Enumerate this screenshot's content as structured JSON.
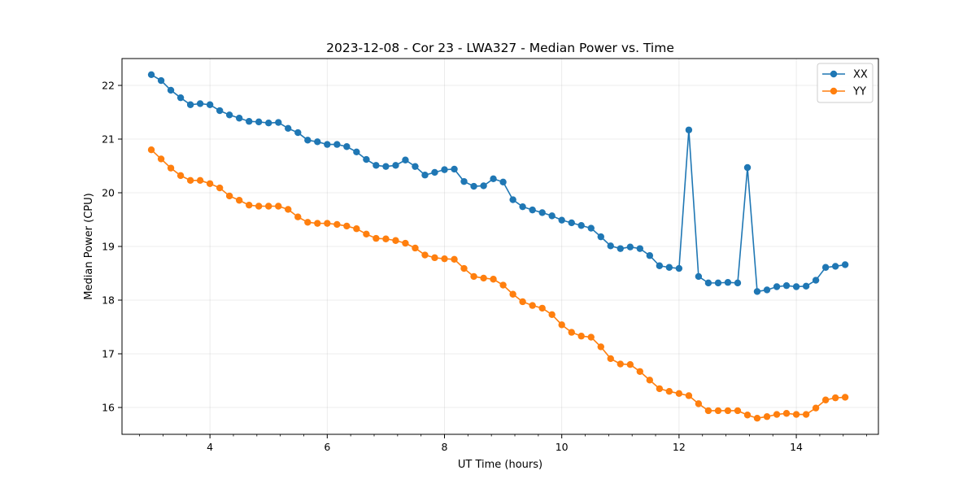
{
  "chart_data": {
    "type": "line",
    "title": "2023-12-08 - Cor 23 - LWA327 - Median Power vs. Time",
    "xlabel": "UT Time (hours)",
    "ylabel": "Median Power (CPU)",
    "xlim": [
      2.5,
      15.4
    ],
    "ylim": [
      15.5,
      22.5
    ],
    "xticks": [
      4,
      6,
      8,
      10,
      12,
      14
    ],
    "xtick_labels": [
      "4",
      "6",
      "8",
      "10",
      "12",
      "14"
    ],
    "yticks": [
      16,
      17,
      18,
      19,
      20,
      21,
      22
    ],
    "ytick_labels": [
      "16",
      "17",
      "18",
      "19",
      "20",
      "21",
      "22"
    ],
    "grid": true,
    "legend_position": "top-right",
    "x": [
      3.0,
      3.167,
      3.333,
      3.5,
      3.667,
      3.833,
      4.0,
      4.167,
      4.333,
      4.5,
      4.667,
      4.833,
      5.0,
      5.167,
      5.333,
      5.5,
      5.667,
      5.833,
      6.0,
      6.167,
      6.333,
      6.5,
      6.667,
      6.833,
      7.0,
      7.167,
      7.333,
      7.5,
      7.667,
      7.833,
      8.0,
      8.167,
      8.333,
      8.5,
      8.667,
      8.833,
      9.0,
      9.167,
      9.333,
      9.5,
      9.667,
      9.833,
      10.0,
      10.167,
      10.333,
      10.5,
      10.667,
      10.833,
      11.0,
      11.167,
      11.333,
      11.5,
      11.667,
      11.833,
      12.0,
      12.167,
      12.333,
      12.5,
      12.667,
      12.833,
      13.0,
      13.167,
      13.333,
      13.5,
      13.667,
      13.833,
      14.0,
      14.167,
      14.333,
      14.5,
      14.667,
      14.833
    ],
    "series": [
      {
        "name": "XX",
        "color": "#1f77b4",
        "values": [
          22.2,
          22.09,
          21.91,
          21.77,
          21.64,
          21.66,
          21.64,
          21.53,
          21.45,
          21.39,
          21.33,
          21.32,
          21.3,
          21.31,
          21.2,
          21.12,
          20.98,
          20.95,
          20.9,
          20.9,
          20.86,
          20.76,
          20.62,
          20.51,
          20.49,
          20.51,
          20.61,
          20.49,
          20.33,
          20.38,
          20.43,
          20.44,
          20.21,
          20.12,
          20.13,
          20.26,
          20.2,
          19.87,
          19.74,
          19.68,
          19.63,
          19.57,
          19.49,
          19.44,
          19.39,
          19.34,
          19.18,
          19.01,
          18.96,
          18.99,
          18.96,
          18.83,
          18.64,
          18.61,
          18.59,
          21.17,
          18.44,
          18.32,
          18.32,
          18.33,
          18.32,
          20.47,
          18.16,
          18.19,
          18.25,
          18.27,
          18.25,
          18.26,
          18.37,
          18.61,
          18.63,
          18.66
        ]
      },
      {
        "name": "YY",
        "color": "#ff7f0e",
        "values": [
          20.8,
          20.63,
          20.46,
          20.32,
          20.23,
          20.23,
          20.17,
          20.09,
          19.94,
          19.86,
          19.77,
          19.75,
          19.75,
          19.75,
          19.69,
          19.55,
          19.45,
          19.43,
          19.43,
          19.41,
          19.38,
          19.33,
          19.23,
          19.15,
          19.14,
          19.11,
          19.06,
          18.97,
          18.84,
          18.79,
          18.77,
          18.76,
          18.59,
          18.44,
          18.41,
          18.39,
          18.28,
          18.11,
          17.97,
          17.9,
          17.85,
          17.73,
          17.54,
          17.4,
          17.33,
          17.31,
          17.13,
          16.91,
          16.81,
          16.8,
          16.67,
          16.51,
          16.35,
          16.3,
          16.26,
          16.22,
          16.07,
          15.94,
          15.94,
          15.94,
          15.94,
          15.86,
          15.8,
          15.83,
          15.87,
          15.89,
          15.87,
          15.87,
          15.99,
          16.14,
          16.18,
          16.19
        ]
      }
    ]
  }
}
